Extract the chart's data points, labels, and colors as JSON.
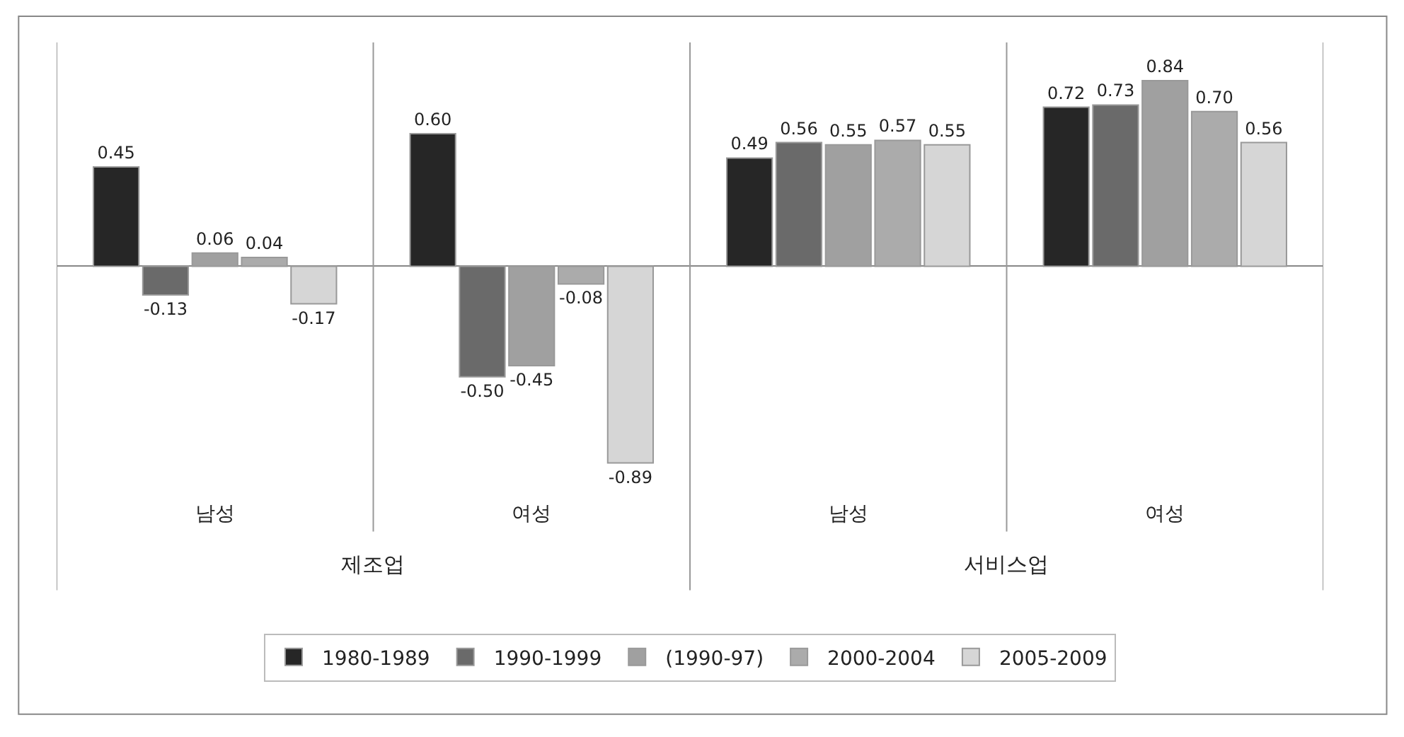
{
  "chart_data": {
    "type": "bar",
    "categories": [
      "남성",
      "여성",
      "남성",
      "여성"
    ],
    "series": [
      {
        "name": "1980-1989",
        "color": "#262626",
        "values": [
          0.45,
          0.6,
          0.49,
          0.72
        ],
        "value_labels": [
          "0.45",
          "0.60",
          "0.49",
          "0.72"
        ]
      },
      {
        "name": "1990-1999",
        "color": "#6a6a6a",
        "values": [
          -0.13,
          -0.5,
          0.56,
          0.73
        ],
        "value_labels": [
          "-0.13",
          "-0.50",
          "0.56",
          "0.73"
        ]
      },
      {
        "name": "(1990-97)",
        "color": "#a0a0a0",
        "values": [
          0.06,
          -0.45,
          0.55,
          0.84
        ],
        "value_labels": [
          "0.06",
          "-0.45",
          "0.55",
          "0.84"
        ]
      },
      {
        "name": "2000-2004",
        "color": "#ababab",
        "values": [
          0.04,
          -0.08,
          0.57,
          0.7
        ],
        "value_labels": [
          "0.04",
          "-0.08",
          "0.57",
          "0.70"
        ]
      },
      {
        "name": "2005-2009",
        "color": "#d6d6d6",
        "values": [
          -0.17,
          -0.89,
          0.55,
          0.56
        ],
        "value_labels": [
          "-0.17",
          "-0.89",
          "0.55",
          "0.56"
        ]
      }
    ],
    "annotations": [
      "제조업",
      "서비스업"
    ],
    "legend": "bottom"
  }
}
